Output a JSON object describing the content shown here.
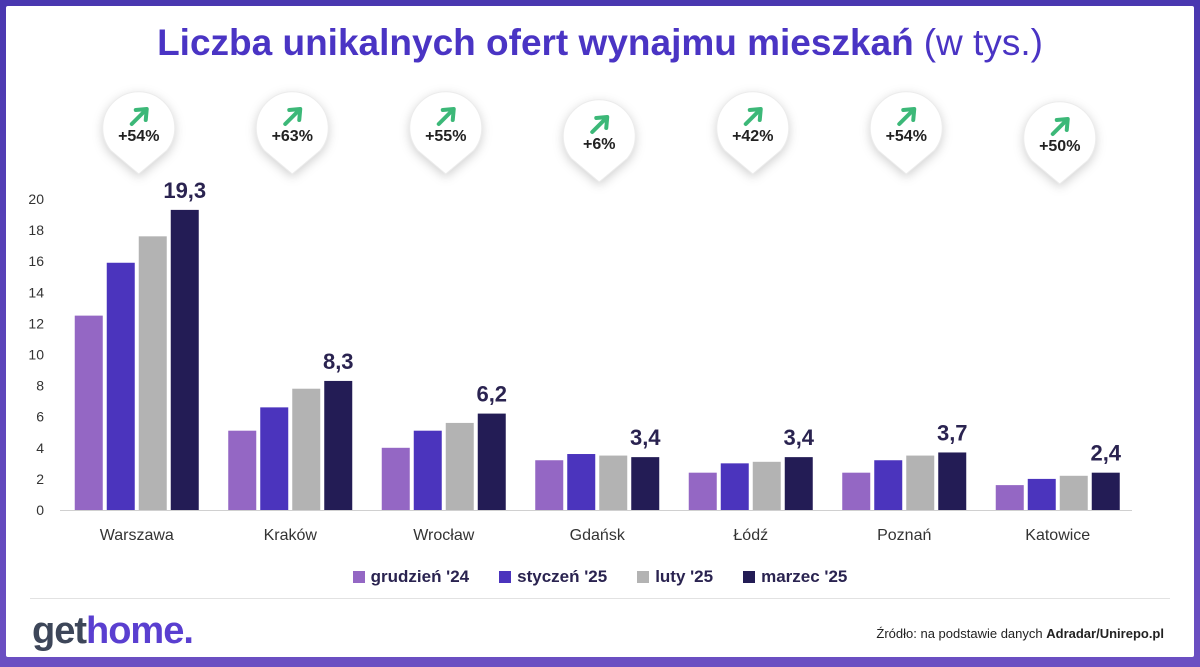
{
  "title_bold": "Liczba unikalnych ofert wynajmu mieszkań",
  "title_sub": "(w tys.)",
  "source_prefix": "Źródło: na podstawie danych",
  "source_bold": "Adradar/Unirepo.pl",
  "logo_part1": "get",
  "logo_part2": "home.",
  "colors": {
    "grudzien": "#9467c4",
    "styczen": "#4b34bd",
    "luty": "#b3b3b3",
    "marzec": "#231c55",
    "arrow": "#3cb878",
    "text_dark": "#2a2350"
  },
  "chart_data": {
    "type": "bar",
    "title": "Liczba unikalnych ofert wynajmu mieszkań (w tys.)",
    "categories": [
      "Warszawa",
      "Kraków",
      "Wrocław",
      "Gdańsk",
      "Łódź",
      "Poznań",
      "Katowice"
    ],
    "series": [
      {
        "name": "grudzień '24",
        "color": "#9467c4",
        "values": [
          12.5,
          5.1,
          4.0,
          3.2,
          2.4,
          2.4,
          1.6
        ]
      },
      {
        "name": "styczeń '25",
        "color": "#4b34bd",
        "values": [
          15.9,
          6.6,
          5.1,
          3.6,
          3.0,
          3.2,
          2.0
        ]
      },
      {
        "name": "luty '25",
        "color": "#b3b3b3",
        "values": [
          17.6,
          7.8,
          5.6,
          3.5,
          3.1,
          3.5,
          2.2
        ]
      },
      {
        "name": "marzec '25",
        "color": "#231c55",
        "values": [
          19.3,
          8.3,
          6.2,
          3.4,
          3.4,
          3.7,
          2.4
        ]
      }
    ],
    "value_labels": [
      "19,3",
      "8,3",
      "6,2",
      "3,4",
      "3,4",
      "3,7",
      "2,4"
    ],
    "changes": [
      "+54%",
      "+63%",
      "+55%",
      "+6%",
      "+42%",
      "+54%",
      "+50%"
    ],
    "ylim": [
      0,
      20
    ],
    "yticks": [
      0,
      2,
      4,
      6,
      8,
      10,
      12,
      14,
      16,
      18,
      20
    ],
    "grid": false,
    "legend": "bottom"
  }
}
